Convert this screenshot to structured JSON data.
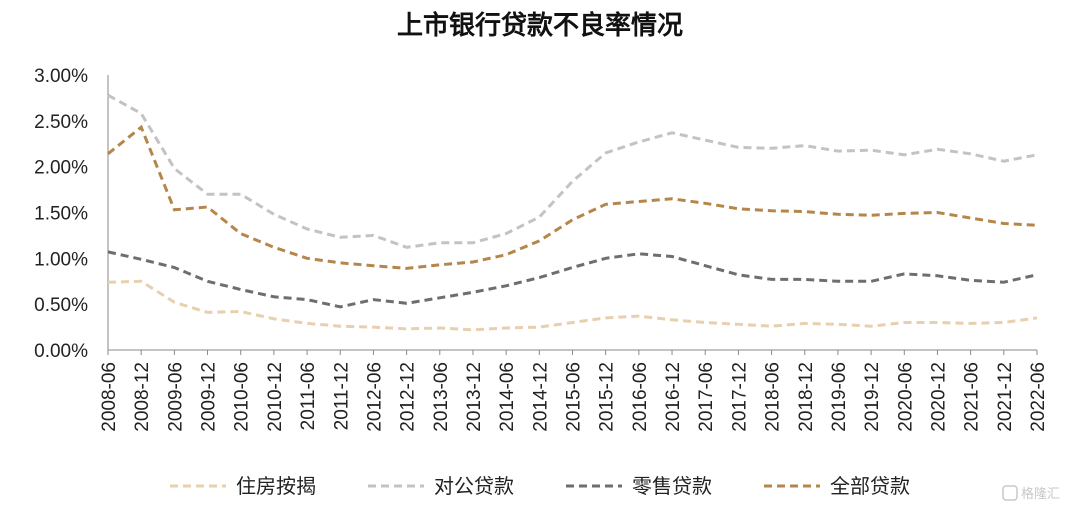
{
  "chart_data": {
    "type": "line",
    "title": "上市银行贷款不良率情况",
    "xlabel": "",
    "ylabel": "",
    "ylim": [
      0,
      3.0
    ],
    "yticks": [
      "0.00%",
      "0.50%",
      "1.00%",
      "1.50%",
      "2.00%",
      "2.50%",
      "3.00%"
    ],
    "grid": false,
    "legend_position": "bottom",
    "x": [
      "2008-06",
      "2008-12",
      "2009-06",
      "2009-12",
      "2010-06",
      "2010-12",
      "2011-06",
      "2011-12",
      "2012-06",
      "2012-12",
      "2013-06",
      "2013-12",
      "2014-06",
      "2014-12",
      "2015-06",
      "2015-12",
      "2016-06",
      "2016-12",
      "2017-06",
      "2017-12",
      "2018-06",
      "2018-12",
      "2019-06",
      "2019-12",
      "2020-06",
      "2020-12",
      "2021-06",
      "2021-12",
      "2022-06"
    ],
    "series": [
      {
        "name": "住房按揭",
        "color": "#e8cfae",
        "style": "dashed",
        "values": [
          0.74,
          0.75,
          0.52,
          0.41,
          0.42,
          0.34,
          0.29,
          0.26,
          0.25,
          0.23,
          0.24,
          0.22,
          0.24,
          0.25,
          0.3,
          0.35,
          0.37,
          0.33,
          0.3,
          0.28,
          0.26,
          0.29,
          0.28,
          0.26,
          0.3,
          0.3,
          0.29,
          0.3,
          0.35
        ]
      },
      {
        "name": "对公贷款",
        "color": "#c3c3c3",
        "style": "dashed",
        "values": [
          2.78,
          2.58,
          1.98,
          1.7,
          1.7,
          1.48,
          1.32,
          1.23,
          1.25,
          1.12,
          1.17,
          1.17,
          1.27,
          1.45,
          1.84,
          2.15,
          2.27,
          2.37,
          2.29,
          2.21,
          2.2,
          2.23,
          2.17,
          2.18,
          2.13,
          2.19,
          2.14,
          2.06,
          2.13
        ]
      },
      {
        "name": "零售贷款",
        "color": "#6e6e6e",
        "style": "dashed",
        "values": [
          1.07,
          0.99,
          0.9,
          0.75,
          0.66,
          0.58,
          0.55,
          0.47,
          0.55,
          0.51,
          0.57,
          0.63,
          0.7,
          0.79,
          0.9,
          1.0,
          1.05,
          1.02,
          0.92,
          0.82,
          0.77,
          0.77,
          0.75,
          0.75,
          0.83,
          0.81,
          0.76,
          0.74,
          0.82
        ]
      },
      {
        "name": "全部贷款",
        "color": "#b5864b",
        "style": "dashed",
        "values": [
          2.14,
          2.43,
          1.53,
          1.56,
          1.27,
          1.12,
          1.0,
          0.95,
          0.92,
          0.89,
          0.93,
          0.96,
          1.04,
          1.19,
          1.42,
          1.59,
          1.62,
          1.65,
          1.6,
          1.54,
          1.52,
          1.51,
          1.48,
          1.47,
          1.49,
          1.5,
          1.44,
          1.38,
          1.36
        ]
      }
    ]
  },
  "watermark": {
    "text": "格隆汇",
    "icon": "logo-g-icon"
  }
}
